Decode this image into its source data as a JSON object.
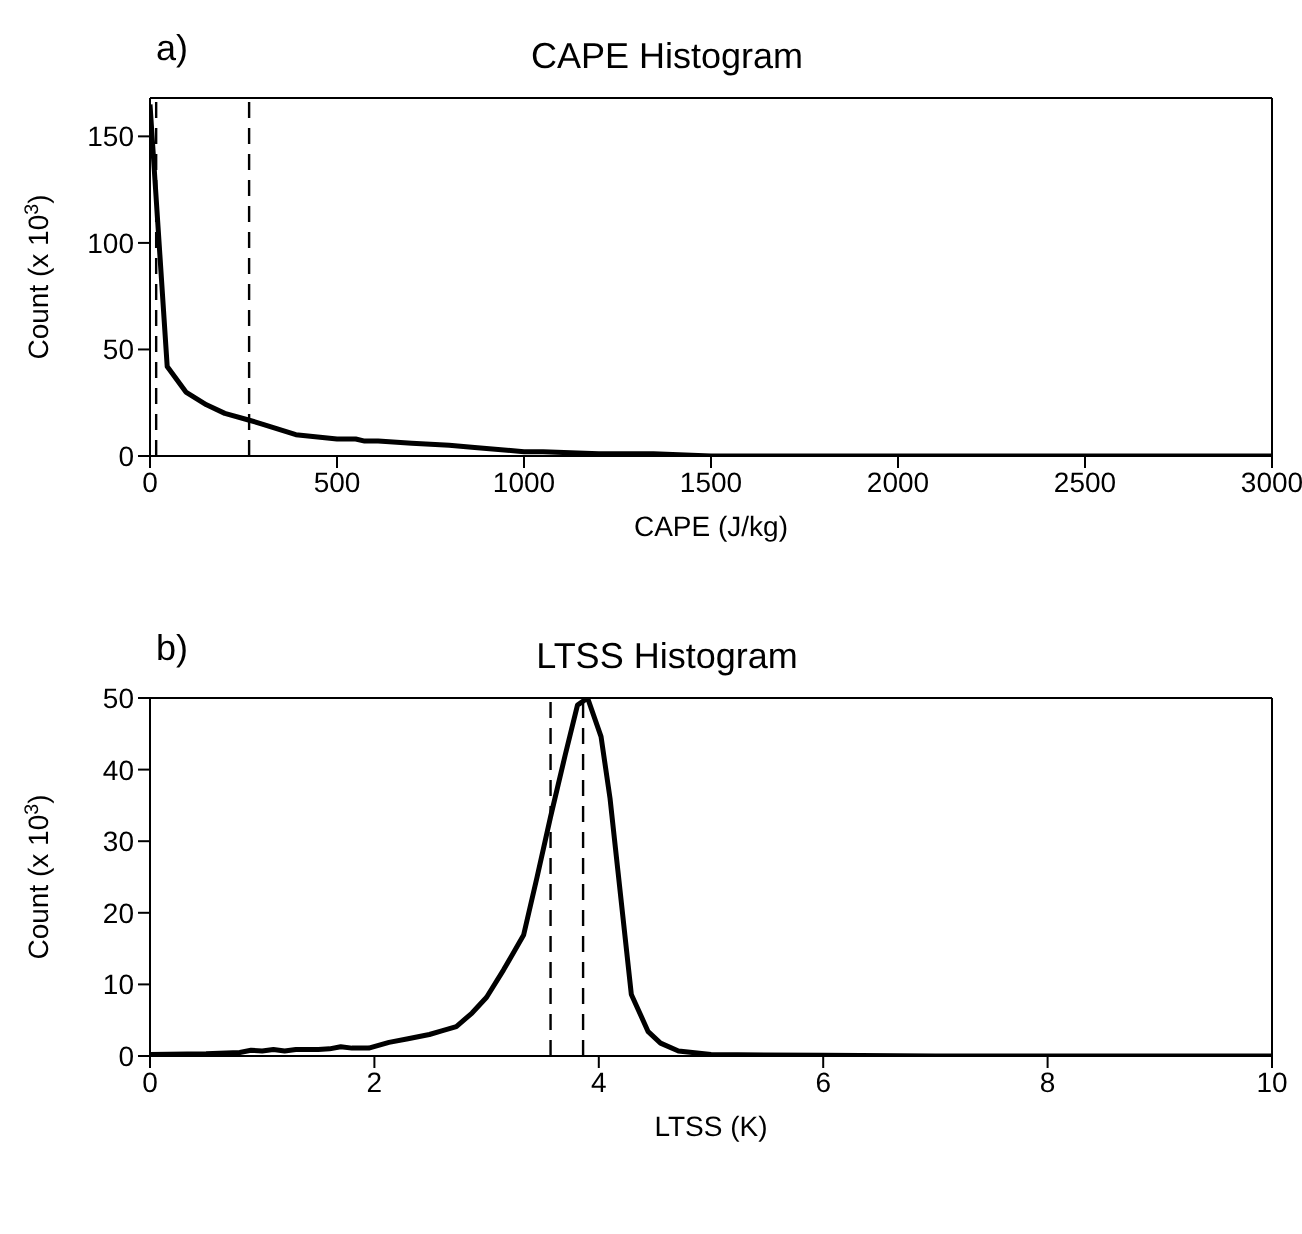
{
  "chart_data": [
    {
      "type": "line",
      "title": "CAPE Histogram",
      "annotations": [
        "a)"
      ],
      "xlabel": "CAPE (J/kg)",
      "ylabel": "Count (x 10$^{3}$)",
      "series": [
        {
          "color": "#000000",
          "x": [
            0,
            46,
            96,
            151,
            200,
            261,
            300,
            390,
            500,
            550,
            574,
            610,
            700,
            800,
            868,
            1000,
            1051,
            1200,
            1346,
            1500,
            2000,
            2500,
            3000
          ],
          "values": [
            165,
            42,
            30,
            24,
            20,
            17,
            15,
            10,
            8,
            8,
            7,
            7,
            6,
            5,
            4,
            2,
            2,
            1,
            1,
            0,
            0,
            0,
            0
          ]
        }
      ],
      "xlim": [
        0,
        3000
      ],
      "xticks": [
        0,
        500,
        1000,
        1500,
        2000,
        2500,
        3000
      ],
      "ylim": [
        0,
        168
      ],
      "yticks": [
        0,
        50,
        100,
        150
      ],
      "ref_lines": [
        {
          "axis": "x",
          "value": 16.5,
          "color": "#000000",
          "line_style": "dashed"
        },
        {
          "axis": "x",
          "value": 265,
          "color": "#000000",
          "line_style": "dashed"
        }
      ],
      "line_style": "solid"
    },
    {
      "type": "line",
      "title": "LTSS Histogram",
      "annotations": [
        "b)"
      ],
      "xlabel": "LTSS (K)",
      "ylabel": "Count (x 10$^{3}$)",
      "series": [
        {
          "color": "#000000",
          "x": [
            0,
            0.5,
            0.8,
            0.9,
            1.0,
            1.1,
            1.2,
            1.3,
            1.4,
            1.5,
            1.6,
            1.7,
            1.8,
            1.95,
            2.13,
            2.3,
            2.49,
            2.6,
            2.73,
            2.87,
            3.0,
            3.15,
            3.33,
            3.45,
            3.57,
            3.7,
            3.81,
            3.9,
            4.02,
            4.1,
            4.17,
            4.29,
            4.44,
            4.55,
            4.71,
            5.0,
            6.0,
            7.0,
            8.0,
            10.0
          ],
          "values": [
            0.2,
            0.3,
            0.5,
            0.8,
            0.7,
            0.9,
            0.7,
            0.9,
            0.9,
            0.9,
            1.0,
            1.3,
            1.1,
            1.1,
            1.9,
            2.4,
            3.0,
            3.5,
            4.1,
            6.0,
            8.2,
            12,
            16.9,
            25,
            33.4,
            42,
            49,
            50,
            44.6,
            36,
            25.9,
            8.6,
            3.4,
            1.8,
            0.7,
            0.2,
            0.1,
            0,
            0,
            0
          ]
        }
      ],
      "xlim": [
        0,
        10
      ],
      "xticks": [
        0,
        2,
        4,
        6,
        8,
        10
      ],
      "ylim": [
        0,
        50
      ],
      "yticks": [
        0,
        10,
        20,
        30,
        40,
        50
      ],
      "ref_lines": [
        {
          "axis": "x",
          "value": 3.57,
          "color": "#000000",
          "line_style": "dashed"
        },
        {
          "axis": "x",
          "value": 3.86,
          "color": "#000000",
          "line_style": "dashed"
        }
      ],
      "line_style": "solid"
    }
  ]
}
